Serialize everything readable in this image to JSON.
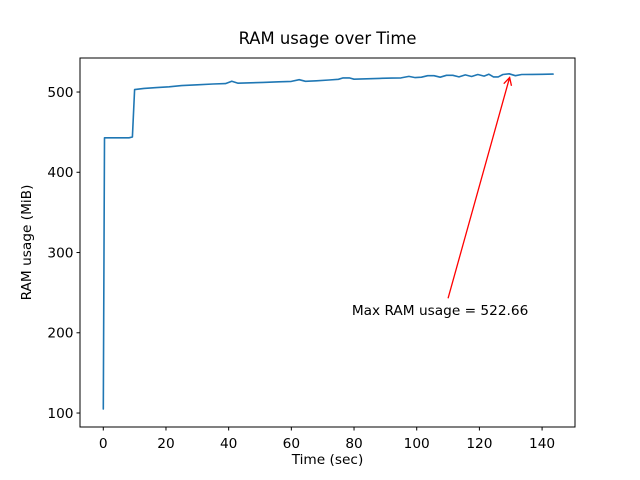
{
  "chart_data": {
    "type": "line",
    "title": "RAM usage over Time",
    "xlabel": "Time (sec)",
    "ylabel": "RAM usage (MiB)",
    "xlim": [
      -7.43,
      150.5
    ],
    "ylim": [
      82.6,
      542.4
    ],
    "x_ticks": [
      0,
      20,
      40,
      60,
      80,
      100,
      120,
      140
    ],
    "y_ticks": [
      100,
      200,
      300,
      400,
      500
    ],
    "grid": false,
    "legend": false,
    "series": [
      {
        "name": "RAM usage",
        "color": "#1f77b4",
        "points": [
          [
            0,
            105
          ],
          [
            0.4,
            443
          ],
          [
            8.2,
            443
          ],
          [
            9.3,
            444
          ],
          [
            10,
            503
          ],
          [
            13,
            504.5
          ],
          [
            17,
            505.5
          ],
          [
            21,
            506.5
          ],
          [
            25,
            508
          ],
          [
            30,
            509
          ],
          [
            35,
            510
          ],
          [
            39,
            510.5
          ],
          [
            41,
            513.5
          ],
          [
            43,
            511
          ],
          [
            47,
            511.5
          ],
          [
            51,
            512
          ],
          [
            56,
            512.7
          ],
          [
            60,
            513.2
          ],
          [
            62.5,
            515.4
          ],
          [
            64.5,
            513.4
          ],
          [
            68,
            514
          ],
          [
            72,
            515
          ],
          [
            75,
            515.8
          ],
          [
            76.5,
            517.6
          ],
          [
            78.5,
            517.6
          ],
          [
            80,
            516
          ],
          [
            84,
            516.5
          ],
          [
            88,
            517
          ],
          [
            92,
            517.3
          ],
          [
            95,
            517.6
          ],
          [
            97.5,
            519.5
          ],
          [
            99.5,
            518
          ],
          [
            101.5,
            518.5
          ],
          [
            103.5,
            520.4
          ],
          [
            105.5,
            520.4
          ],
          [
            107.5,
            518.5
          ],
          [
            109.5,
            520.9
          ],
          [
            111.5,
            520.9
          ],
          [
            113.5,
            518.9
          ],
          [
            115.5,
            521.4
          ],
          [
            117.5,
            519.4
          ],
          [
            119.5,
            521.9
          ],
          [
            121.5,
            519.9
          ],
          [
            123,
            522.2
          ],
          [
            124.5,
            518.9
          ],
          [
            126,
            518.9
          ],
          [
            127.5,
            521.9
          ],
          [
            129.5,
            522.66
          ],
          [
            131.5,
            520.4
          ],
          [
            133.5,
            521.9
          ],
          [
            137,
            522
          ],
          [
            140,
            522.1
          ],
          [
            143.5,
            522.3
          ]
        ]
      }
    ],
    "annotation": {
      "text": "Max RAM usage = 522.66",
      "color": "#ff0000",
      "text_xy": [
        79.3,
        222
      ],
      "arrow_from": [
        110,
        243
      ],
      "arrow_to": [
        129.6,
        517.5
      ]
    },
    "max_value": 522.66,
    "spine_color": "#000000"
  }
}
